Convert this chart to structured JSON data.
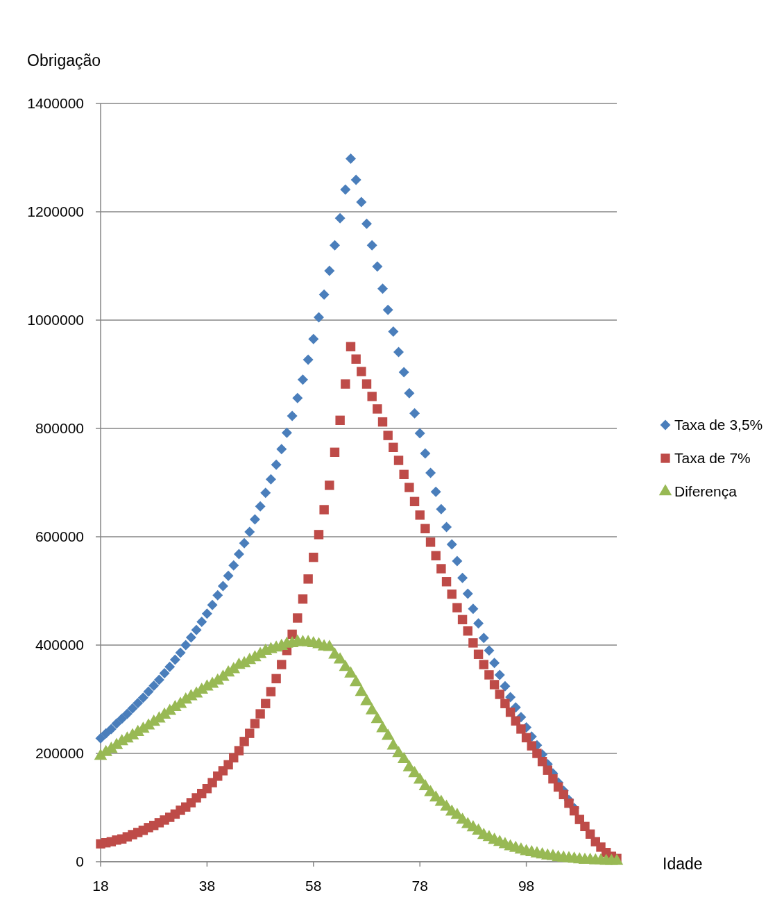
{
  "chart_data": {
    "type": "scatter",
    "ylabel": "Obrigação",
    "xlabel": "Idade",
    "x": [
      18,
      19,
      20,
      21,
      22,
      23,
      24,
      25,
      26,
      27,
      28,
      29,
      30,
      31,
      32,
      33,
      34,
      35,
      36,
      37,
      38,
      39,
      40,
      41,
      42,
      43,
      44,
      45,
      46,
      47,
      48,
      49,
      50,
      51,
      52,
      53,
      54,
      55,
      56,
      57,
      58,
      59,
      60,
      61,
      62,
      63,
      64,
      65,
      66,
      67,
      68,
      69,
      70,
      71,
      72,
      73,
      74,
      75,
      76,
      77,
      78,
      79,
      80,
      81,
      82,
      83,
      84,
      85,
      86,
      87,
      88,
      89,
      90,
      91,
      92,
      93,
      94,
      95,
      96,
      97,
      98,
      99,
      100,
      101,
      102,
      103,
      104,
      105,
      106,
      107,
      108,
      109,
      110,
      111,
      112,
      113,
      114,
      115
    ],
    "series": [
      {
        "name": "Taxa de 3,5%",
        "color": "#4a7ebb",
        "marker": "diamond",
        "values": [
          228000,
          237000,
          245000,
          255000,
          264000,
          273000,
          283000,
          293000,
          303000,
          314000,
          325000,
          336000,
          348000,
          360000,
          373000,
          386000,
          400000,
          414000,
          428000,
          443000,
          458000,
          474000,
          492000,
          509000,
          528000,
          547000,
          568000,
          588000,
          609000,
          632000,
          656000,
          681000,
          706000,
          733000,
          762000,
          792000,
          823000,
          856000,
          890000,
          927000,
          965000,
          1005000,
          1047000,
          1091000,
          1138000,
          1188000,
          1241000,
          1298000,
          1259000,
          1218000,
          1178000,
          1138000,
          1099000,
          1058000,
          1019000,
          979000,
          941000,
          904000,
          865000,
          828000,
          791000,
          754000,
          718000,
          683000,
          651000,
          618000,
          586000,
          555000,
          524000,
          495000,
          467000,
          440000,
          413000,
          390000,
          367000,
          345000,
          324000,
          304000,
          285000,
          267000,
          248000,
          231000,
          215000,
          198000,
          180000,
          163000,
          146000,
          131000,
          114000,
          99000,
          null,
          null,
          null,
          null,
          null,
          null,
          null,
          null
        ]
      },
      {
        "name": "Taxa de 7%",
        "color": "#be4b48",
        "marker": "square",
        "values": [
          33000,
          35000,
          37000,
          40000,
          42000,
          46000,
          50000,
          54000,
          58000,
          63000,
          67000,
          72000,
          77000,
          82000,
          88000,
          95000,
          101000,
          109000,
          118000,
          126000,
          135000,
          146000,
          158000,
          168000,
          179000,
          192000,
          205000,
          222000,
          237000,
          255000,
          273000,
          292000,
          314000,
          338000,
          364000,
          390000,
          420000,
          450000,
          485000,
          522000,
          562000,
          604000,
          650000,
          695000,
          756000,
          815000,
          882000,
          951000,
          928000,
          905000,
          882000,
          859000,
          836000,
          812000,
          787000,
          765000,
          741000,
          715000,
          691000,
          665000,
          640000,
          615000,
          590000,
          565000,
          541000,
          517000,
          494000,
          469000,
          447000,
          426000,
          404000,
          383000,
          364000,
          345000,
          327000,
          309000,
          292000,
          276000,
          260000,
          245000,
          229000,
          214000,
          200000,
          185000,
          169000,
          153000,
          138000,
          124000,
          108000,
          94000,
          78000,
          65000,
          51000,
          37000,
          27000,
          17000,
          10000,
          6000
        ]
      },
      {
        "name": "Diferença",
        "color": "#98b954",
        "marker": "triangle",
        "values": [
          195000,
          202000,
          208000,
          215000,
          222000,
          227000,
          233000,
          239000,
          245000,
          251000,
          258000,
          264000,
          271000,
          278000,
          285000,
          291000,
          299000,
          305000,
          310000,
          317000,
          323000,
          328000,
          334000,
          341000,
          349000,
          355000,
          363000,
          366000,
          372000,
          377000,
          383000,
          389000,
          392000,
          395000,
          398000,
          402000,
          403000,
          406000,
          405000,
          405000,
          403000,
          401000,
          397000,
          396000,
          382000,
          373000,
          359000,
          347000,
          331000,
          313000,
          296000,
          279000,
          263000,
          246000,
          232000,
          214000,
          200000,
          189000,
          174000,
          163000,
          151000,
          139000,
          128000,
          118000,
          110000,
          101000,
          92000,
          86000,
          77000,
          69000,
          63000,
          57000,
          49000,
          45000,
          40000,
          36000,
          32000,
          28000,
          25000,
          22000,
          19000,
          17000,
          15000,
          13000,
          11000,
          10000,
          8000,
          7000,
          6000,
          5000,
          4000,
          3000,
          3000,
          2000,
          2000,
          1000,
          1000,
          1000
        ]
      }
    ],
    "xlim": [
      18,
      115
    ],
    "xticks": [
      18,
      38,
      58,
      78,
      98
    ],
    "ylim": [
      0,
      1400000
    ],
    "yticks": [
      0,
      200000,
      400000,
      600000,
      800000,
      1000000,
      1200000,
      1400000
    ],
    "grid": "y",
    "legend": "right"
  }
}
